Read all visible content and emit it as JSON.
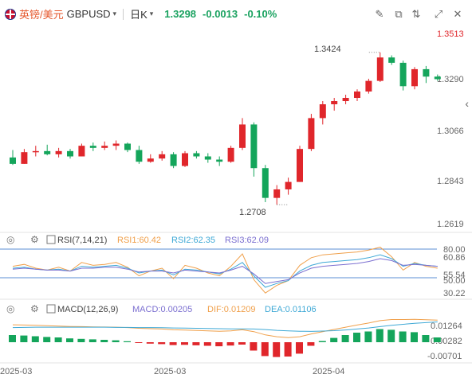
{
  "header": {
    "pair_cn": "英镑/美元",
    "pair_en": "GBPUSD",
    "timeframe": "日K",
    "price": "1.3298",
    "change": "-0.0013",
    "change_pct": "-0.10%",
    "toolbar_icons": [
      "draw-icon",
      "indicator-icon",
      "compare-icon",
      "fullscreen-icon",
      "close-icon"
    ]
  },
  "main_chart": {
    "price_ticks": [
      "1.3513",
      "1.3290",
      "1.3066",
      "1.2843",
      "1.2619"
    ],
    "high_label": "1.3424",
    "low_label": "1.2708"
  },
  "rsi": {
    "title": "RSI(7,14,21)",
    "rsi1": "RSI1:60.42",
    "rsi2": "RSI2:62.35",
    "rsi3": "RSI3:62.09",
    "ticks": [
      "80.00",
      "60.86",
      "55.54",
      "50.00",
      "30.22"
    ]
  },
  "macd": {
    "title": "MACD(12,26,9)",
    "macd": "MACD:0.00205",
    "dif": "DIF:0.01209",
    "dea": "DEA:0.01106",
    "ticks": [
      "0.01264",
      "0.00282",
      "-0.00701"
    ]
  },
  "x_axis": [
    "2025-03",
    "2025-03",
    "2025-04"
  ],
  "colors": {
    "up": "#e0262b",
    "down": "#14a55b",
    "rsi1": "#f0a04b",
    "rsi2": "#3fa9d6",
    "rsi3": "#7b6fd0"
  },
  "chart_data": {
    "type": "candlestick",
    "ohlc": [
      [
        1.293,
        1.2965,
        1.2895,
        1.29
      ],
      [
        1.29,
        1.297,
        1.29,
        1.2955
      ],
      [
        1.2955,
        1.2985,
        1.2935,
        1.296
      ],
      [
        1.296,
        1.299,
        1.294,
        1.2945
      ],
      [
        1.2945,
        1.2975,
        1.293,
        1.296
      ],
      [
        1.296,
        1.297,
        1.2925,
        1.2935
      ],
      [
        1.2935,
        1.2995,
        1.2935,
        1.2985
      ],
      [
        1.2985,
        1.3,
        1.296,
        1.2975
      ],
      [
        1.2975,
        1.3005,
        1.2965,
        1.2985
      ],
      [
        1.2985,
        1.301,
        1.2965,
        1.2995
      ],
      [
        1.2995,
        1.3,
        1.2955,
        1.2965
      ],
      [
        1.2965,
        1.2985,
        1.29,
        1.291
      ],
      [
        1.291,
        1.2945,
        1.2905,
        1.2925
      ],
      [
        1.2925,
        1.296,
        1.2915,
        1.2945
      ],
      [
        1.2945,
        1.2955,
        1.288,
        1.289
      ],
      [
        1.289,
        1.296,
        1.2885,
        1.295
      ],
      [
        1.295,
        1.296,
        1.2925,
        1.2935
      ],
      [
        1.2935,
        1.295,
        1.2905,
        1.292
      ],
      [
        1.292,
        1.2935,
        1.289,
        1.291
      ],
      [
        1.291,
        1.2985,
        1.2905,
        1.2975
      ],
      [
        1.2975,
        1.3115,
        1.2965,
        1.3085
      ],
      [
        1.3085,
        1.3095,
        1.284,
        1.288
      ],
      [
        1.288,
        1.2895,
        1.272,
        1.274
      ],
      [
        1.274,
        1.28,
        1.2708,
        1.278
      ],
      [
        1.278,
        1.2835,
        1.2755,
        1.2815
      ],
      [
        1.2815,
        1.2985,
        1.2815,
        1.297
      ],
      [
        1.297,
        1.3135,
        1.296,
        1.3115
      ],
      [
        1.3115,
        1.3195,
        1.3085,
        1.318
      ],
      [
        1.318,
        1.321,
        1.315,
        1.3195
      ],
      [
        1.3195,
        1.3225,
        1.318,
        1.321
      ],
      [
        1.321,
        1.325,
        1.3195,
        1.324
      ],
      [
        1.324,
        1.33,
        1.323,
        1.329
      ],
      [
        1.329,
        1.3424,
        1.3285,
        1.34
      ],
      [
        1.34,
        1.341,
        1.3365,
        1.3375
      ],
      [
        1.3375,
        1.3385,
        1.3245,
        1.3265
      ],
      [
        1.3265,
        1.3355,
        1.325,
        1.3345
      ],
      [
        1.3345,
        1.336,
        1.328,
        1.331
      ],
      [
        1.331,
        1.332,
        1.329,
        1.3298
      ]
    ],
    "rsi_series": {
      "rsi1": [
        62,
        64,
        60,
        58,
        61,
        57,
        66,
        63,
        64,
        66,
        61,
        52,
        57,
        60,
        49,
        63,
        60,
        55,
        52,
        62,
        75,
        48,
        34,
        42,
        47,
        63,
        71,
        74,
        75,
        76,
        77,
        79,
        82,
        72,
        58,
        66,
        62,
        60
      ],
      "rsi2": [
        60,
        61,
        59,
        58,
        59,
        57,
        62,
        61,
        62,
        63,
        60,
        55,
        57,
        58,
        53,
        59,
        58,
        56,
        54,
        59,
        66,
        52,
        40,
        44,
        47,
        57,
        63,
        66,
        67,
        68,
        69,
        71,
        74,
        70,
        62,
        65,
        63,
        62
      ],
      "rsi3": [
        59,
        60,
        59,
        58,
        58,
        57,
        60,
        60,
        61,
        61,
        59,
        56,
        57,
        57,
        55,
        58,
        57,
        56,
        55,
        58,
        62,
        54,
        44,
        46,
        48,
        55,
        60,
        62,
        63,
        64,
        65,
        67,
        70,
        68,
        63,
        64,
        63,
        62
      ]
    },
    "macd_series": {
      "hist": [
        0.003,
        0.0028,
        0.0025,
        0.0022,
        0.002,
        0.0016,
        0.0014,
        0.0012,
        0.001,
        0.0008,
        0.0004,
        -0.0003,
        -0.0006,
        -0.0008,
        -0.0012,
        -0.0011,
        -0.0013,
        -0.0015,
        -0.0017,
        -0.0014,
        -0.001,
        -0.0035,
        -0.0058,
        -0.0062,
        -0.006,
        -0.0048,
        -0.0015,
        0.0005,
        0.0018,
        0.003,
        0.004,
        0.0045,
        0.0055,
        0.0052,
        0.0045,
        0.0042,
        0.003,
        0.002
      ],
      "dif": [
        0.0095,
        0.0094,
        0.0092,
        0.009,
        0.0088,
        0.0086,
        0.0085,
        0.0084,
        0.0083,
        0.0082,
        0.008,
        0.0076,
        0.0074,
        0.0072,
        0.0068,
        0.0066,
        0.0064,
        0.0062,
        0.006,
        0.0062,
        0.0068,
        0.0058,
        0.004,
        0.003,
        0.0025,
        0.003,
        0.0045,
        0.0058,
        0.007,
        0.0082,
        0.0094,
        0.0105,
        0.0118,
        0.0124,
        0.0124,
        0.0125,
        0.0123,
        0.0121
      ],
      "dea": [
        0.008,
        0.0081,
        0.0082,
        0.0082,
        0.0082,
        0.0082,
        0.0082,
        0.0082,
        0.0082,
        0.0081,
        0.0081,
        0.008,
        0.008,
        0.0079,
        0.0078,
        0.0077,
        0.0076,
        0.0075,
        0.0074,
        0.0073,
        0.0073,
        0.0072,
        0.0069,
        0.0065,
        0.0062,
        0.006,
        0.0059,
        0.0061,
        0.0063,
        0.0067,
        0.0072,
        0.0078,
        0.0085,
        0.0092,
        0.0098,
        0.0103,
        0.0107,
        0.0111
      ]
    }
  }
}
